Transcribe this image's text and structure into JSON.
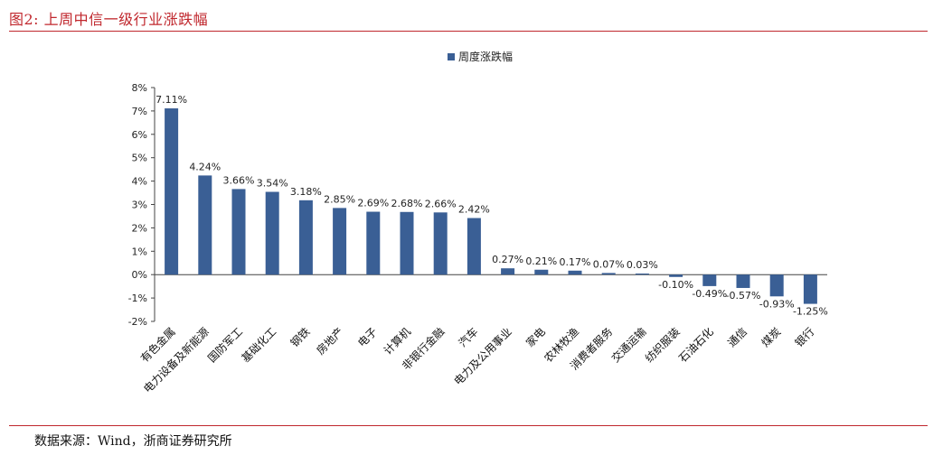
{
  "figure": {
    "title": "图2:   上周中信一级行业涨跌幅",
    "source": "数据来源：Wind，浙商证券研究所"
  },
  "colors": {
    "accent": "#c0272d",
    "bar": "#3a5f95"
  },
  "chart_data": {
    "type": "bar",
    "categories": [
      "有色金属",
      "电力设备及新能源",
      "国防军工",
      "基础化工",
      "钢铁",
      "房地产",
      "电子",
      "计算机",
      "非银行金融",
      "汽车",
      "电力及公用事业",
      "家电",
      "农林牧渔",
      "消费者服务",
      "交通运输",
      "纺织服装",
      "石油石化",
      "通信",
      "煤炭",
      "银行"
    ],
    "series": [
      {
        "name": "周度涨跌幅",
        "values": [
          7.11,
          4.24,
          3.66,
          3.54,
          3.18,
          2.85,
          2.69,
          2.68,
          2.66,
          2.42,
          0.27,
          0.21,
          0.17,
          0.07,
          0.03,
          -0.1,
          -0.49,
          -0.57,
          -0.93,
          -1.25
        ],
        "labels": [
          "7.11%",
          "4.24%",
          "3.66%",
          "3.54%",
          "3.18%",
          "2.85%",
          "2.69%",
          "2.68%",
          "2.66%",
          "2.42%",
          "0.27%",
          "0.21%",
          "0.17%",
          "0.07%",
          "0.03%",
          "-0.10%",
          "-0.49%",
          "-0.57%",
          "-0.93%",
          "-1.25%"
        ]
      }
    ],
    "ylim": [
      -2,
      8
    ],
    "yticks": [
      8,
      7,
      6,
      5,
      4,
      3,
      2,
      1,
      0,
      -1,
      -2
    ],
    "ytick_labels": [
      "8%",
      "7%",
      "6%",
      "5%",
      "4%",
      "3%",
      "2%",
      "1%",
      "0%",
      "-1%",
      "-2%"
    ],
    "grid": false,
    "legend": "top-center"
  }
}
